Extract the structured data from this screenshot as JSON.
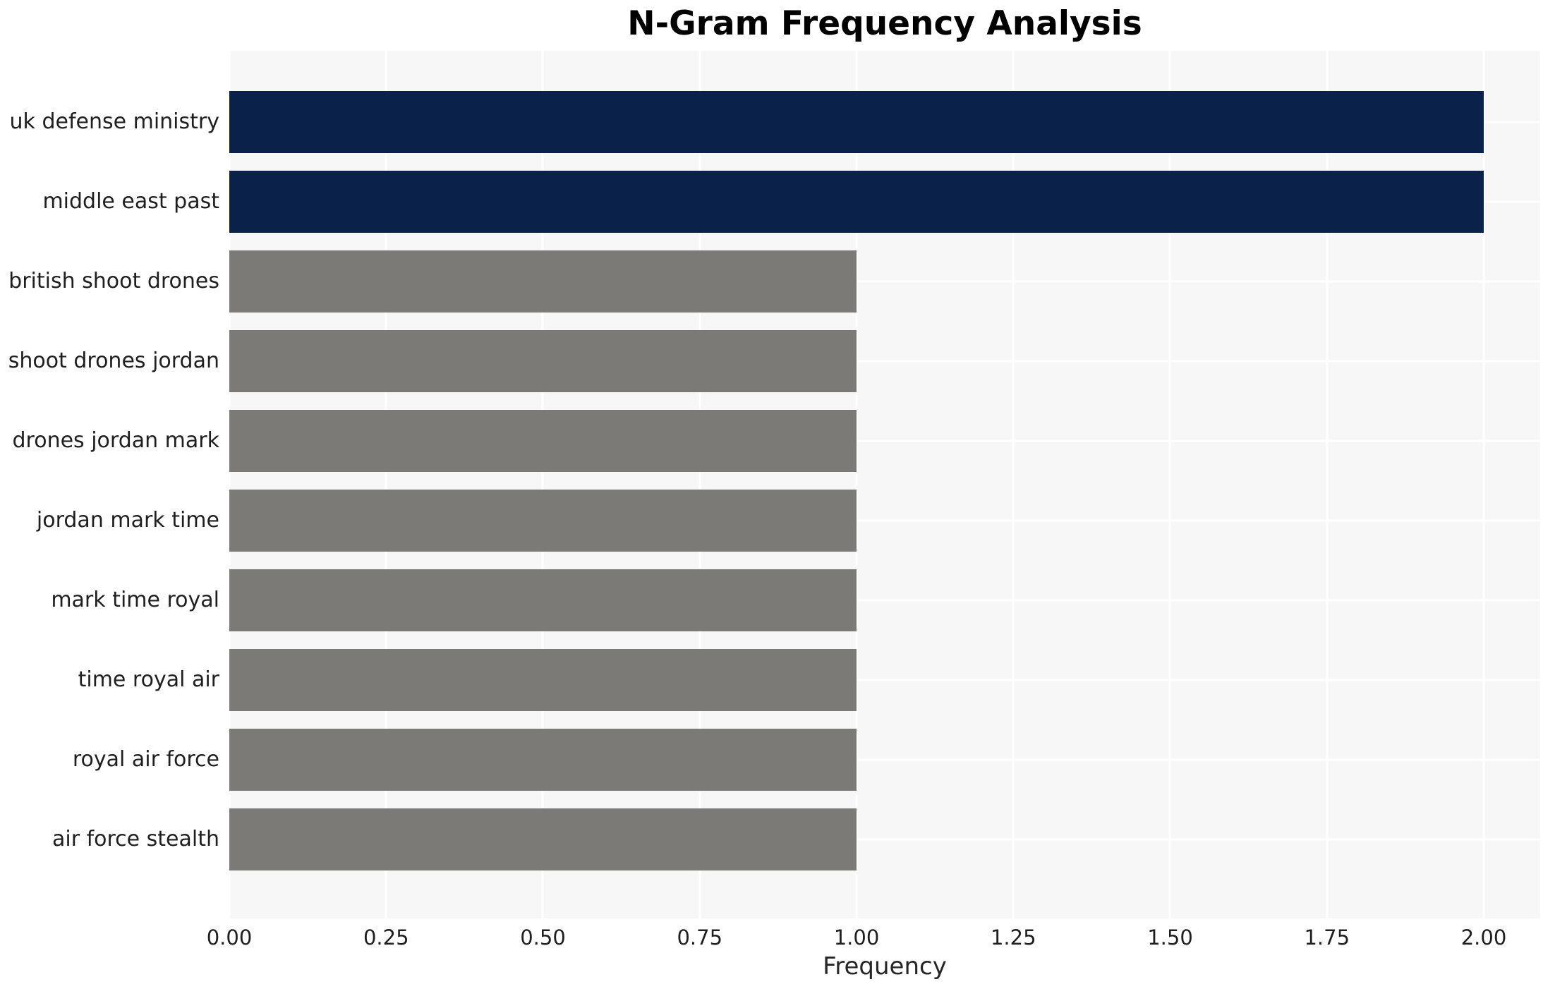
{
  "chart_data": {
    "type": "bar",
    "orientation": "horizontal",
    "title": "N-Gram Frequency Analysis",
    "xlabel": "Frequency",
    "ylabel": "",
    "categories": [
      "uk defense ministry",
      "middle east past",
      "british shoot drones",
      "shoot drones jordan",
      "drones jordan mark",
      "jordan mark time",
      "mark time royal",
      "time royal air",
      "royal air force",
      "air force stealth"
    ],
    "values": [
      2.0,
      2.0,
      1.0,
      1.0,
      1.0,
      1.0,
      1.0,
      1.0,
      1.0,
      1.0
    ],
    "colors": [
      "#0a2149",
      "#0a2149",
      "#7b7a77",
      "#7b7a77",
      "#7b7a77",
      "#7b7a77",
      "#7b7a77",
      "#7b7a77",
      "#7b7a77",
      "#7b7a77"
    ],
    "xlim": [
      0,
      2.09
    ],
    "xticks": [
      0,
      0.25,
      0.5,
      0.75,
      1.0,
      1.25,
      1.5,
      1.75,
      2.0
    ],
    "xtick_labels": [
      "0.00",
      "0.25",
      "0.50",
      "0.75",
      "1.00",
      "1.25",
      "1.50",
      "1.75",
      "2.00"
    ],
    "grid": {
      "show": true,
      "color": "#ffffff"
    },
    "plot_background": "#f7f7f7",
    "figure_background": "#ffffff",
    "legend": "none"
  }
}
